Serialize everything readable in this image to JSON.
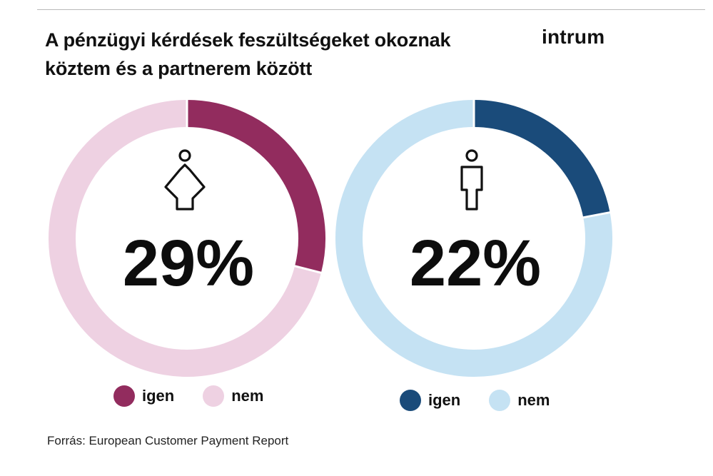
{
  "title": "A pénzügyi kérdések feszültségeket okoznak köztem és a partnerem között",
  "logo": "intrum",
  "source": "Forrás: European Customer Payment Report",
  "colors": {
    "women_yes": "#922c5e",
    "women_no": "#eed1e2",
    "men_yes": "#1a4b7a",
    "men_no": "#c5e2f3"
  },
  "chart_data": [
    {
      "type": "pie",
      "variant": "donut",
      "icon": "female-icon",
      "center_label": "29%",
      "series": [
        {
          "name": "igen",
          "value": 29,
          "color": "#922c5e"
        },
        {
          "name": "nem",
          "value": 71,
          "color": "#eed1e2"
        }
      ],
      "legend": [
        "igen",
        "nem"
      ],
      "legend_position": "bottom"
    },
    {
      "type": "pie",
      "variant": "donut",
      "icon": "male-icon",
      "center_label": "22%",
      "series": [
        {
          "name": "igen",
          "value": 22,
          "color": "#1a4b7a"
        },
        {
          "name": "nem",
          "value": 78,
          "color": "#c5e2f3"
        }
      ],
      "legend": [
        "igen",
        "nem"
      ],
      "legend_position": "bottom"
    }
  ]
}
